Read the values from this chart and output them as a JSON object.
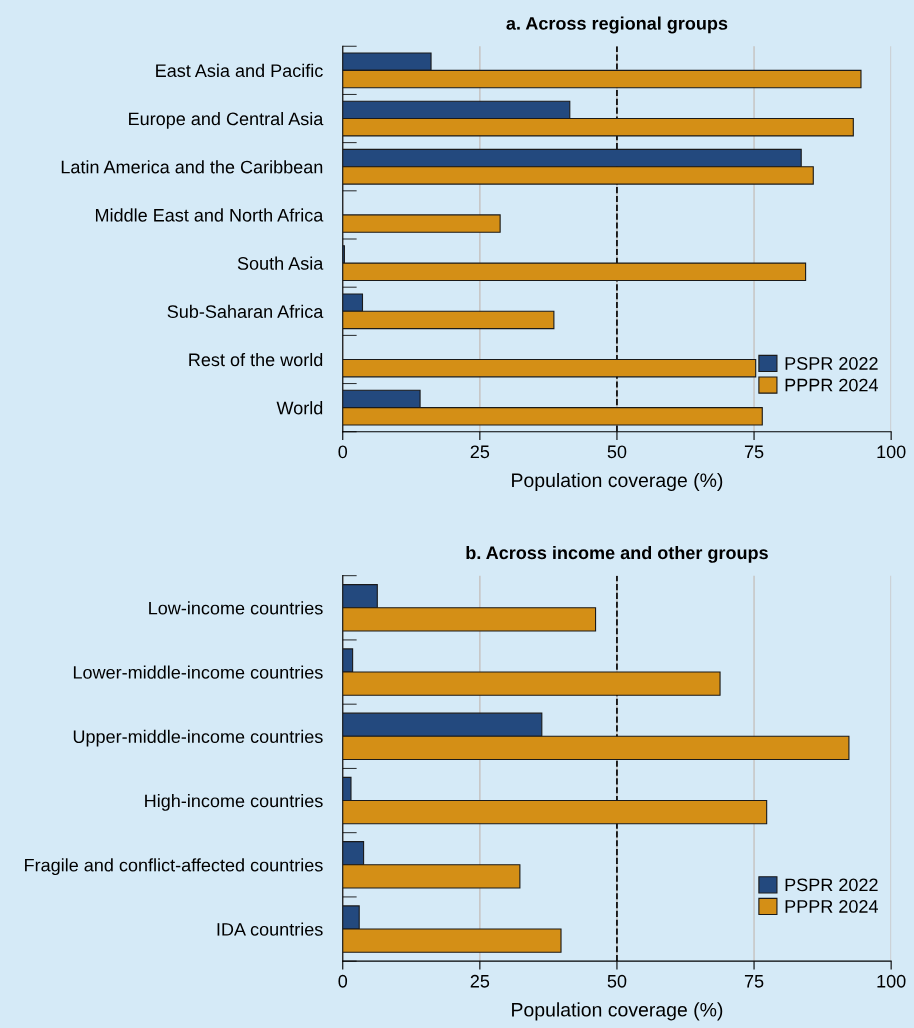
{
  "chart_data": [
    {
      "type": "bar",
      "orientation": "horizontal",
      "title": "a. Across regional groups",
      "xlabel": "Population coverage (%)",
      "categories": [
        "East Asia and Pacific",
        "Europe and Central Asia",
        "Latin America and the Caribbean",
        "Middle East and North Africa",
        "South Asia",
        "Sub-Saharan Africa",
        "Rest of the world",
        "World"
      ],
      "series": [
        {
          "name": "PSPR 2022",
          "color": "#23497e",
          "values": [
            16.1,
            41.4,
            83.6,
            null,
            0.3,
            3.6,
            null,
            14.1
          ]
        },
        {
          "name": "PPPR 2024",
          "color": "#d48f16",
          "values": [
            94.5,
            93.1,
            85.8,
            28.7,
            84.4,
            38.5,
            75.3,
            76.5
          ]
        }
      ],
      "xlim": [
        0,
        100
      ],
      "xticks": [
        0,
        25,
        50,
        75,
        100
      ],
      "grid": "x",
      "legend": "bottom right",
      "ref_lines": [
        {
          "axis": "x",
          "value": 50,
          "color": "#000000",
          "line_style": "dashed"
        }
      ]
    },
    {
      "type": "bar",
      "orientation": "horizontal",
      "title": "b. Across income and other groups",
      "xlabel": "Population coverage (%)",
      "categories": [
        "Low-income countries",
        "Lower-middle-income countries",
        "Upper-middle-income countries",
        "High-income countries",
        "Fragile and conflict-affected countries",
        "IDA countries"
      ],
      "series": [
        {
          "name": "PSPR 2022",
          "color": "#23497e",
          "values": [
            6.3,
            1.8,
            36.3,
            1.5,
            3.8,
            3.0
          ]
        },
        {
          "name": "PPPR 2024",
          "color": "#d48f16",
          "values": [
            46.1,
            68.8,
            92.3,
            77.3,
            32.3,
            39.8
          ]
        }
      ],
      "xlim": [
        0,
        100
      ],
      "xticks": [
        0,
        25,
        50,
        75,
        100
      ],
      "grid": "x",
      "legend": "bottom right",
      "ref_lines": [
        {
          "axis": "x",
          "value": 50,
          "color": "#000000",
          "line_style": "dashed"
        }
      ]
    }
  ]
}
